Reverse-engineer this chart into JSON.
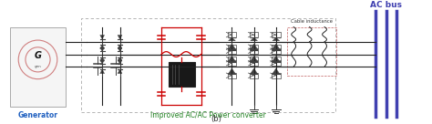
{
  "title": "(b)",
  "converter_label": "Improved AC/AC Power converter",
  "generator_label": "Generator",
  "acbus_label": "AC bus",
  "cable_label": "Cable inductance",
  "bg_color": "#ffffff",
  "gen_circle_color": "#c06060",
  "gen_text_color": "#2060c0",
  "acbus_color": "#4040b0",
  "converter_label_color": "#208020",
  "wire_color": "#222222",
  "red_wire_color": "#cc0000",
  "component_color": "#333333",
  "figsize": [
    4.74,
    1.36
  ],
  "dpi": 100
}
